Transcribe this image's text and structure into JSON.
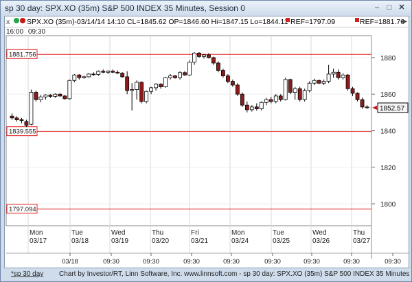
{
  "window": {
    "title": "sp 30 day: SPX.XO (35m) S&P 500 INDEX 35 Minutes, Session 0"
  },
  "legend": {
    "close_glyph": "x",
    "symbol_text": "SPX.XO (35m)-03/14/14 14:10 CL=1845.62 OP=1846.60 Hi=1847.15 Lo=1844.11",
    "ref1": "REF=1797.09",
    "ref2": "REF=1881.76",
    "nav_glyph": "◂▸"
  },
  "timeline": {
    "start_label": "16:00",
    "time_label": "09:30"
  },
  "footer": {
    "tab_label": "*sp 30 day",
    "credit": "Chart by Investor/RT, Linn Software, Inc. www.linnsoft.com - sp 30 day: SPX.XO (35m) S&P 500 INDEX 35 Minutes"
  },
  "colors": {
    "up": "#ffffff",
    "down": "#8b1c1c",
    "ref_line": "#e02020",
    "grid": "#d8d8d8"
  },
  "chart_data": {
    "type": "candlestick",
    "ylim": [
      1788,
      1892
    ],
    "y_ticks": [
      1800,
      1820,
      1840,
      1860,
      1880
    ],
    "last_price": 1852.57,
    "last_price_label": "1852.57",
    "ref_lines": [
      {
        "value": 1881.756,
        "label": "1881.756"
      },
      {
        "value": 1839.555,
        "label": "1839.555"
      },
      {
        "value": 1797.094,
        "label": "1797.094"
      }
    ],
    "day_labels": [
      {
        "day": "Mon",
        "date": "03/17"
      },
      {
        "day": "Tue",
        "date": "03/18"
      },
      {
        "day": "Wed",
        "date": "03/19"
      },
      {
        "day": "Thu",
        "date": "03/20"
      },
      {
        "day": "Fri",
        "date": "03/21"
      },
      {
        "day": "Mon",
        "date": "03/24"
      },
      {
        "day": "Tue",
        "date": "03/25"
      },
      {
        "day": "Wed",
        "date": "03/26"
      },
      {
        "day": "Thu",
        "date": "03/27"
      }
    ],
    "bottom_axis": [
      "03/18",
      "09:30",
      "09:30",
      "09:30",
      "09:30",
      "09:30",
      "09:30",
      "09:30",
      "09:30"
    ],
    "candles": [
      {
        "o": 1848.0,
        "h": 1849.5,
        "l": 1846.0,
        "c": 1847.0
      },
      {
        "o": 1847.0,
        "h": 1848.0,
        "l": 1845.0,
        "c": 1846.0
      },
      {
        "o": 1846.0,
        "h": 1847.0,
        "l": 1844.1,
        "c": 1845.6
      },
      {
        "o": 1845.0,
        "h": 1846.0,
        "l": 1842.0,
        "c": 1843.0
      },
      {
        "o": 1843.5,
        "h": 1862.5,
        "l": 1843.0,
        "c": 1861.0
      },
      {
        "o": 1861.0,
        "h": 1862.0,
        "l": 1856.0,
        "c": 1857.0
      },
      {
        "o": 1857.0,
        "h": 1859.5,
        "l": 1855.5,
        "c": 1858.5
      },
      {
        "o": 1858.5,
        "h": 1860.0,
        "l": 1857.0,
        "c": 1859.5
      },
      {
        "o": 1859.5,
        "h": 1860.0,
        "l": 1858.0,
        "c": 1858.8
      },
      {
        "o": 1858.8,
        "h": 1860.5,
        "l": 1858.0,
        "c": 1860.0
      },
      {
        "o": 1860.0,
        "h": 1860.5,
        "l": 1858.5,
        "c": 1859.0
      },
      {
        "o": 1859.0,
        "h": 1859.5,
        "l": 1857.0,
        "c": 1857.5
      },
      {
        "o": 1857.5,
        "h": 1868.0,
        "l": 1857.0,
        "c": 1867.5
      },
      {
        "o": 1867.5,
        "h": 1871.0,
        "l": 1866.5,
        "c": 1870.5
      },
      {
        "o": 1870.5,
        "h": 1871.0,
        "l": 1868.0,
        "c": 1869.0
      },
      {
        "o": 1869.0,
        "h": 1870.0,
        "l": 1868.5,
        "c": 1869.5
      },
      {
        "o": 1869.5,
        "h": 1871.5,
        "l": 1869.0,
        "c": 1871.0
      },
      {
        "o": 1871.0,
        "h": 1872.0,
        "l": 1870.0,
        "c": 1870.8
      },
      {
        "o": 1870.8,
        "h": 1873.0,
        "l": 1870.0,
        "c": 1872.5
      },
      {
        "o": 1872.5,
        "h": 1873.5,
        "l": 1871.5,
        "c": 1872.0
      },
      {
        "o": 1872.0,
        "h": 1873.0,
        "l": 1871.0,
        "c": 1872.6
      },
      {
        "o": 1872.6,
        "h": 1873.5,
        "l": 1871.5,
        "c": 1872.0
      },
      {
        "o": 1872.0,
        "h": 1873.0,
        "l": 1871.0,
        "c": 1871.5
      },
      {
        "o": 1871.5,
        "h": 1872.0,
        "l": 1869.0,
        "c": 1869.5
      },
      {
        "o": 1869.5,
        "h": 1872.5,
        "l": 1860.0,
        "c": 1862.0
      },
      {
        "o": 1862.0,
        "h": 1866.0,
        "l": 1851.0,
        "c": 1862.5
      },
      {
        "o": 1862.5,
        "h": 1867.5,
        "l": 1857.0,
        "c": 1866.5
      },
      {
        "o": 1866.5,
        "h": 1867.0,
        "l": 1855.0,
        "c": 1856.0
      },
      {
        "o": 1856.0,
        "h": 1862.0,
        "l": 1855.0,
        "c": 1861.5
      },
      {
        "o": 1861.5,
        "h": 1864.0,
        "l": 1860.0,
        "c": 1863.5
      },
      {
        "o": 1863.5,
        "h": 1866.0,
        "l": 1862.0,
        "c": 1865.5
      },
      {
        "o": 1865.5,
        "h": 1866.0,
        "l": 1863.0,
        "c": 1864.0
      },
      {
        "o": 1864.0,
        "h": 1869.5,
        "l": 1863.5,
        "c": 1869.0
      },
      {
        "o": 1869.0,
        "h": 1871.0,
        "l": 1868.0,
        "c": 1870.0
      },
      {
        "o": 1870.0,
        "h": 1870.5,
        "l": 1868.5,
        "c": 1869.0
      },
      {
        "o": 1869.0,
        "h": 1872.5,
        "l": 1868.0,
        "c": 1871.8
      },
      {
        "o": 1871.8,
        "h": 1872.5,
        "l": 1870.0,
        "c": 1870.5
      },
      {
        "o": 1870.5,
        "h": 1878.5,
        "l": 1870.0,
        "c": 1877.5
      },
      {
        "o": 1877.5,
        "h": 1883.0,
        "l": 1876.0,
        "c": 1882.5
      },
      {
        "o": 1882.5,
        "h": 1883.0,
        "l": 1880.0,
        "c": 1880.6
      },
      {
        "o": 1880.6,
        "h": 1882.0,
        "l": 1879.5,
        "c": 1881.5
      },
      {
        "o": 1881.5,
        "h": 1882.5,
        "l": 1879.5,
        "c": 1880.0
      },
      {
        "o": 1880.0,
        "h": 1880.5,
        "l": 1876.0,
        "c": 1877.0
      },
      {
        "o": 1877.0,
        "h": 1878.0,
        "l": 1872.0,
        "c": 1873.0
      },
      {
        "o": 1873.0,
        "h": 1874.0,
        "l": 1869.0,
        "c": 1870.0
      },
      {
        "o": 1870.0,
        "h": 1871.0,
        "l": 1866.0,
        "c": 1867.0
      },
      {
        "o": 1867.0,
        "h": 1868.0,
        "l": 1864.0,
        "c": 1865.0
      },
      {
        "o": 1865.0,
        "h": 1866.0,
        "l": 1859.0,
        "c": 1860.0
      },
      {
        "o": 1860.0,
        "h": 1861.0,
        "l": 1853.0,
        "c": 1854.0
      },
      {
        "o": 1854.0,
        "h": 1856.0,
        "l": 1850.0,
        "c": 1851.5
      },
      {
        "o": 1851.5,
        "h": 1854.0,
        "l": 1850.5,
        "c": 1853.0
      },
      {
        "o": 1853.0,
        "h": 1855.0,
        "l": 1851.0,
        "c": 1852.0
      },
      {
        "o": 1852.0,
        "h": 1856.0,
        "l": 1851.0,
        "c": 1855.5
      },
      {
        "o": 1855.5,
        "h": 1858.0,
        "l": 1854.0,
        "c": 1857.0
      },
      {
        "o": 1857.0,
        "h": 1858.5,
        "l": 1855.0,
        "c": 1856.0
      },
      {
        "o": 1856.0,
        "h": 1860.0,
        "l": 1855.0,
        "c": 1859.0
      },
      {
        "o": 1859.0,
        "h": 1860.0,
        "l": 1856.0,
        "c": 1857.0
      },
      {
        "o": 1857.0,
        "h": 1869.0,
        "l": 1856.5,
        "c": 1868.0
      },
      {
        "o": 1868.0,
        "h": 1868.5,
        "l": 1860.0,
        "c": 1861.0
      },
      {
        "o": 1861.0,
        "h": 1864.0,
        "l": 1857.0,
        "c": 1863.0
      },
      {
        "o": 1863.0,
        "h": 1864.0,
        "l": 1856.0,
        "c": 1857.0
      },
      {
        "o": 1857.0,
        "h": 1863.0,
        "l": 1856.0,
        "c": 1862.0
      },
      {
        "o": 1862.0,
        "h": 1867.0,
        "l": 1861.0,
        "c": 1866.0
      },
      {
        "o": 1866.0,
        "h": 1868.5,
        "l": 1865.0,
        "c": 1867.5
      },
      {
        "o": 1867.5,
        "h": 1868.0,
        "l": 1865.5,
        "c": 1866.0
      },
      {
        "o": 1866.0,
        "h": 1868.0,
        "l": 1865.0,
        "c": 1867.0
      },
      {
        "o": 1867.0,
        "h": 1876.0,
        "l": 1866.0,
        "c": 1871.0
      },
      {
        "o": 1871.0,
        "h": 1874.0,
        "l": 1869.0,
        "c": 1872.0
      },
      {
        "o": 1872.0,
        "h": 1873.5,
        "l": 1868.0,
        "c": 1869.0
      },
      {
        "o": 1869.0,
        "h": 1871.5,
        "l": 1868.0,
        "c": 1870.5
      },
      {
        "o": 1870.5,
        "h": 1871.0,
        "l": 1862.0,
        "c": 1863.0
      },
      {
        "o": 1863.0,
        "h": 1864.0,
        "l": 1859.0,
        "c": 1860.5
      },
      {
        "o": 1860.5,
        "h": 1861.0,
        "l": 1856.0,
        "c": 1857.0
      },
      {
        "o": 1857.0,
        "h": 1858.0,
        "l": 1852.0,
        "c": 1853.0
      },
      {
        "o": 1853.0,
        "h": 1854.0,
        "l": 1852.0,
        "c": 1852.57
      }
    ]
  }
}
